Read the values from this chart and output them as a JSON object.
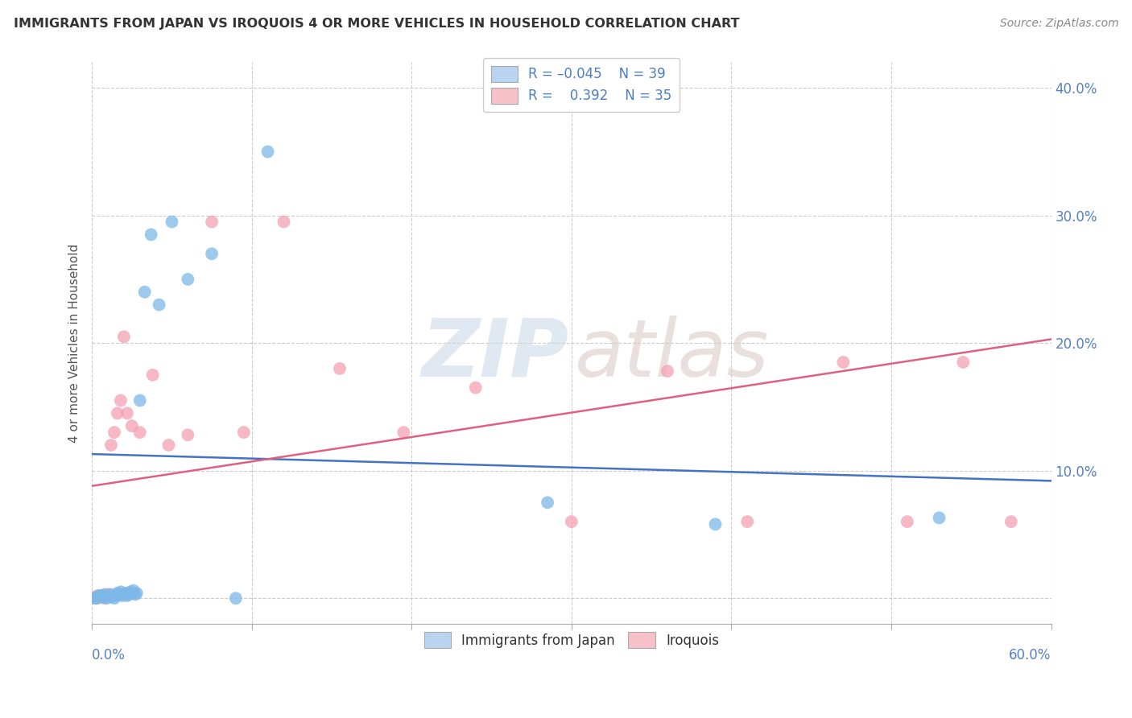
{
  "title": "IMMIGRANTS FROM JAPAN VS IROQUOIS 4 OR MORE VEHICLES IN HOUSEHOLD CORRELATION CHART",
  "source": "Source: ZipAtlas.com",
  "ylabel": "4 or more Vehicles in Household",
  "xlim": [
    0.0,
    0.6
  ],
  "ylim": [
    -0.02,
    0.42
  ],
  "yticks": [
    0.0,
    0.1,
    0.2,
    0.3,
    0.4
  ],
  "ytick_labels": [
    "",
    "10.0%",
    "20.0%",
    "30.0%",
    "40.0%"
  ],
  "xtick_vals": [
    0.0,
    0.1,
    0.2,
    0.3,
    0.4,
    0.5,
    0.6
  ],
  "blue_R": -0.045,
  "blue_N": 39,
  "pink_R": 0.392,
  "pink_N": 35,
  "blue_dot_color": "#7db8e8",
  "pink_dot_color": "#f4a0b0",
  "blue_legend_color": "#b8d4f0",
  "pink_legend_color": "#f8c0c8",
  "blue_line_color": "#4472c4",
  "pink_line_color": "#e06080",
  "blue_line_x0": 0.0,
  "blue_line_y0": 0.113,
  "blue_line_x1": 0.6,
  "blue_line_y1": 0.092,
  "pink_line_x0": 0.0,
  "pink_line_y0": 0.088,
  "pink_line_x1": 0.6,
  "pink_line_y1": 0.203,
  "blue_scatter_x": [
    0.002,
    0.003,
    0.004,
    0.005,
    0.006,
    0.007,
    0.008,
    0.009,
    0.01,
    0.011,
    0.012,
    0.013,
    0.014,
    0.015,
    0.016,
    0.017,
    0.018,
    0.019,
    0.02,
    0.021,
    0.022,
    0.023,
    0.024,
    0.025,
    0.026,
    0.027,
    0.028,
    0.03,
    0.033,
    0.037,
    0.042,
    0.05,
    0.06,
    0.075,
    0.09,
    0.11,
    0.285,
    0.39,
    0.53
  ],
  "blue_scatter_y": [
    0.0,
    0.0,
    0.002,
    0.001,
    0.002,
    0.001,
    0.003,
    0.0,
    0.001,
    0.002,
    0.003,
    0.001,
    0.0,
    0.002,
    0.004,
    0.003,
    0.005,
    0.002,
    0.003,
    0.004,
    0.002,
    0.003,
    0.005,
    0.004,
    0.006,
    0.003,
    0.004,
    0.155,
    0.24,
    0.285,
    0.23,
    0.295,
    0.25,
    0.27,
    0.0,
    0.35,
    0.075,
    0.058,
    0.063
  ],
  "pink_scatter_x": [
    0.001,
    0.002,
    0.003,
    0.004,
    0.005,
    0.006,
    0.007,
    0.008,
    0.009,
    0.01,
    0.011,
    0.012,
    0.014,
    0.016,
    0.018,
    0.02,
    0.022,
    0.025,
    0.03,
    0.038,
    0.048,
    0.06,
    0.075,
    0.095,
    0.12,
    0.155,
    0.195,
    0.24,
    0.3,
    0.36,
    0.41,
    0.47,
    0.51,
    0.545,
    0.575
  ],
  "pink_scatter_y": [
    0.0,
    0.001,
    0.0,
    0.002,
    0.001,
    0.002,
    0.001,
    0.0,
    0.002,
    0.003,
    0.002,
    0.12,
    0.13,
    0.145,
    0.155,
    0.205,
    0.145,
    0.135,
    0.13,
    0.175,
    0.12,
    0.128,
    0.295,
    0.13,
    0.295,
    0.18,
    0.13,
    0.165,
    0.06,
    0.178,
    0.06,
    0.185,
    0.06,
    0.185,
    0.06
  ]
}
